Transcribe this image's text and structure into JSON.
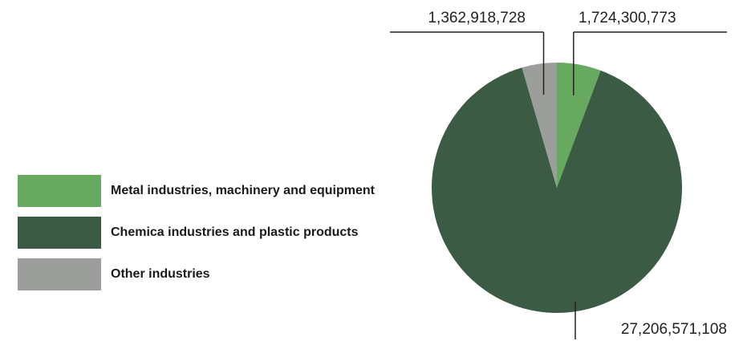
{
  "chart_data": {
    "type": "pie",
    "categories": [
      "Metal industries, machinery and equipment",
      "Chemica industries and plastic products",
      "Other industries"
    ],
    "values": [
      1724300773,
      27206571108,
      1362918728
    ],
    "value_labels": [
      "1,724,300,773",
      "27,206,571,108",
      "1,362,918,728"
    ],
    "colors": [
      "#67a95e",
      "#3b5b45",
      "#9c9e9b"
    ],
    "legend_position": "left"
  }
}
